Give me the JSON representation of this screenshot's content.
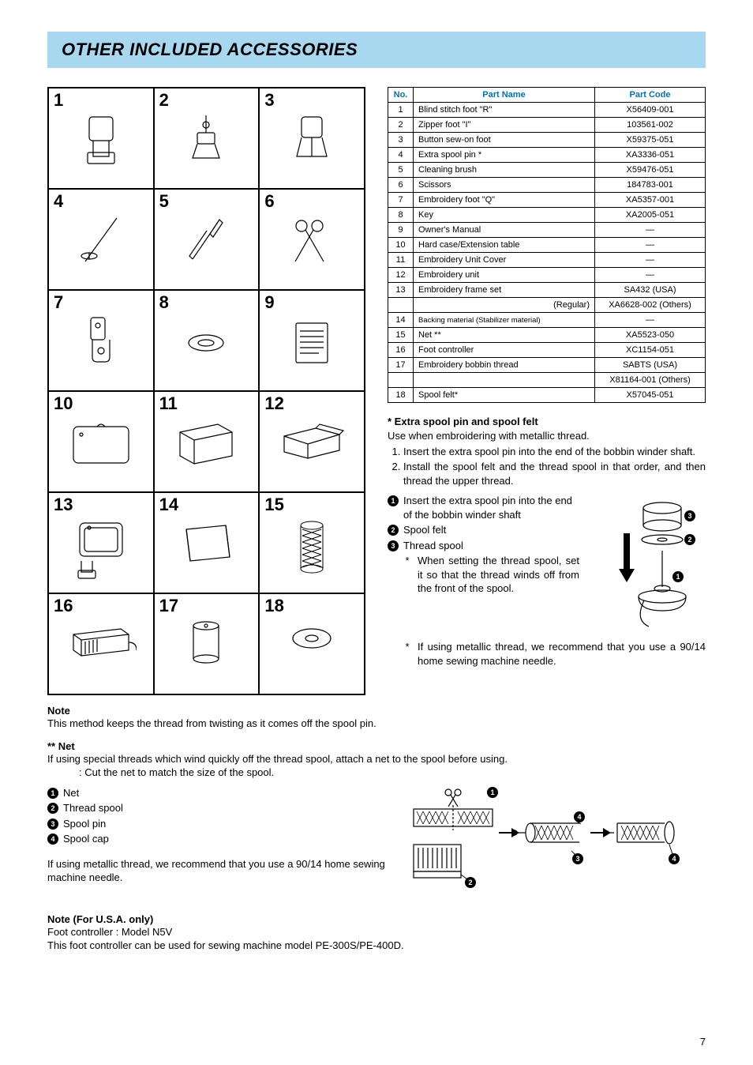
{
  "page_number": "7",
  "title": "OTHER INCLUDED ACCESSORIES",
  "accessory_numbers": [
    "1",
    "2",
    "3",
    "4",
    "5",
    "6",
    "7",
    "8",
    "9",
    "10",
    "11",
    "12",
    "13",
    "14",
    "15",
    "16",
    "17",
    "18"
  ],
  "table": {
    "headers": {
      "no": "No.",
      "name": "Part Name",
      "code": "Part Code"
    },
    "rows": [
      {
        "no": "1",
        "name": "Blind stitch foot \"R\"",
        "code": "X56409-001"
      },
      {
        "no": "2",
        "name": "Zipper foot \"I\"",
        "code": "103561-002"
      },
      {
        "no": "3",
        "name": "Button sew-on foot",
        "code": "X59375-051"
      },
      {
        "no": "4",
        "name": "Extra spool pin *",
        "code": "XA3336-051"
      },
      {
        "no": "5",
        "name": "Cleaning brush",
        "code": "X59476-051"
      },
      {
        "no": "6",
        "name": "Scissors",
        "code": "184783-001"
      },
      {
        "no": "7",
        "name": "Embroidery foot \"Q\"",
        "code": "XA5357-001"
      },
      {
        "no": "8",
        "name": "Key",
        "code": "XA2005-051"
      },
      {
        "no": "9",
        "name": "Owner's Manual",
        "code": "—"
      },
      {
        "no": "10",
        "name": "Hard case/Extension table",
        "code": "—"
      },
      {
        "no": "11",
        "name": "Embroidery Unit Cover",
        "code": "—"
      },
      {
        "no": "12",
        "name": "Embroidery unit",
        "code": "—"
      },
      {
        "no": "13",
        "name": "Embroidery frame set",
        "code": "SA432 (USA)"
      },
      {
        "no": "",
        "name": "(Regular)",
        "name_align": "right",
        "code": "XA6628-002 (Others)"
      },
      {
        "no": "14",
        "name": "Backing material (Stabilizer material)",
        "small": true,
        "code": "—"
      },
      {
        "no": "15",
        "name": "Net **",
        "code": "XA5523-050"
      },
      {
        "no": "16",
        "name": "Foot controller",
        "code": "XC1154-051"
      },
      {
        "no": "17",
        "name": "Embroidery bobbin thread",
        "code": "SABTS (USA)"
      },
      {
        "no": "",
        "name": "",
        "code": "X81164-001 (Others)"
      },
      {
        "no": "18",
        "name": "Spool felt*",
        "code": "X57045-051"
      }
    ]
  },
  "spool": {
    "heading": "* Extra spool pin and spool felt",
    "intro": "Use when embroidering with metallic thread.",
    "steps": [
      "Insert the extra spool pin into the end of the bobbin winder shaft.",
      "Install the spool felt and the thread spool in that order, and then thread the upper thread."
    ],
    "callouts": [
      "Insert the extra spool pin into the end of the bobbin winder shaft",
      "Spool felt",
      "Thread spool"
    ],
    "stars": [
      "When setting the thread spool, set it so that the thread winds off from the front of the spool.",
      "If using metallic thread, we recommend that you use a 90/14 home sewing machine needle."
    ]
  },
  "note": {
    "heading": "Note",
    "text": "This method keeps the thread from twisting as it comes off the spool pin."
  },
  "net": {
    "heading": "** Net",
    "text": "If using special threads which wind quickly off the thread spool, attach a net to the spool before using.",
    "sub": ": Cut the net to match the size of the spool.",
    "callouts": [
      "Net",
      "Thread spool",
      "Spool pin",
      "Spool cap"
    ],
    "rec": "If using metallic thread, we recommend that you use a 90/14 home sewing machine needle."
  },
  "usa": {
    "heading": "Note (For U.S.A. only)",
    "l1": "Foot controller : Model N5V",
    "l2": "This foot controller can be used for sewing machine model PE-300S/PE-400D."
  }
}
